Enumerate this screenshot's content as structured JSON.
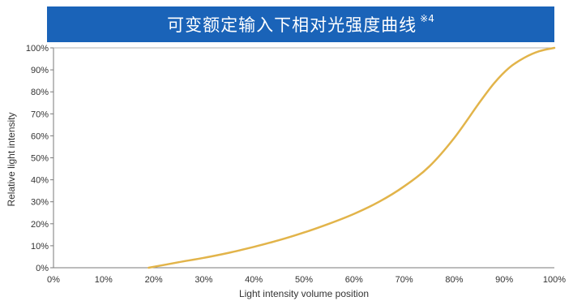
{
  "header": {
    "title": "可变额定输入下相对光强度曲线",
    "note_mark": "※4",
    "background": "#1a63b8"
  },
  "chart_data": {
    "type": "line",
    "title": "可变额定输入下相对光强度曲线 ※4",
    "xlabel": "Light intensity volume position",
    "ylabel": "Relative light intensity",
    "xlim": [
      0,
      100
    ],
    "ylim": [
      0,
      100
    ],
    "x_ticks": [
      "0%",
      "10%",
      "20%",
      "30%",
      "40%",
      "50%",
      "60%",
      "70%",
      "80%",
      "90%",
      "100%"
    ],
    "y_ticks": [
      "0%",
      "10%",
      "20%",
      "30%",
      "40%",
      "50%",
      "60%",
      "70%",
      "80%",
      "90%",
      "100%"
    ],
    "grid": false,
    "series": [
      {
        "color": "#e2b44a",
        "x": [
          19,
          25,
          30,
          35,
          40,
          45,
          50,
          55,
          60,
          65,
          70,
          75,
          80,
          85,
          88,
          91,
          94,
          97,
          100
        ],
        "y": [
          0,
          2.5,
          4.5,
          6.8,
          9.5,
          12.5,
          16,
          20,
          24.5,
          30,
          37,
          46,
          59,
          75,
          84,
          91,
          95.5,
          98.5,
          100
        ]
      }
    ]
  }
}
